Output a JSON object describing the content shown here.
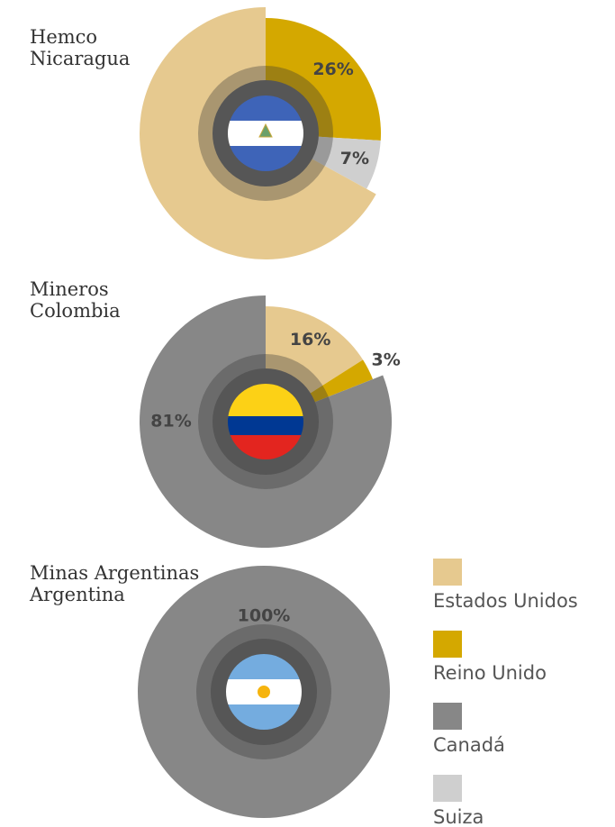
{
  "legend": [
    {
      "name": "Estados Unidos",
      "color": "#e6c98f"
    },
    {
      "name": "Reino Unido",
      "color": "#d4a800"
    },
    {
      "name": "Canadá",
      "color": "#878787"
    },
    {
      "name": "Suiza",
      "color": "#cfcfcf"
    }
  ],
  "chart_data": [
    {
      "type": "pie",
      "title": "Hemco",
      "subtitle": "Nicaragua",
      "categories": [
        "Reino Unido",
        "Suiza",
        "Estados Unidos"
      ],
      "values": [
        26,
        7,
        67
      ],
      "value_labels": [
        "26%",
        "7%",
        null
      ]
    },
    {
      "type": "pie",
      "title": "Mineros",
      "subtitle": "Colombia",
      "categories": [
        "Estados Unidos",
        "Reino Unido",
        "Canadá"
      ],
      "values": [
        16,
        3,
        81
      ],
      "value_labels": [
        "16%",
        "3%",
        "81%"
      ]
    },
    {
      "type": "pie",
      "title": "Minas Argentinas",
      "subtitle": "Argentina",
      "categories": [
        "Canadá"
      ],
      "values": [
        100
      ],
      "value_labels": [
        "100%"
      ]
    }
  ]
}
